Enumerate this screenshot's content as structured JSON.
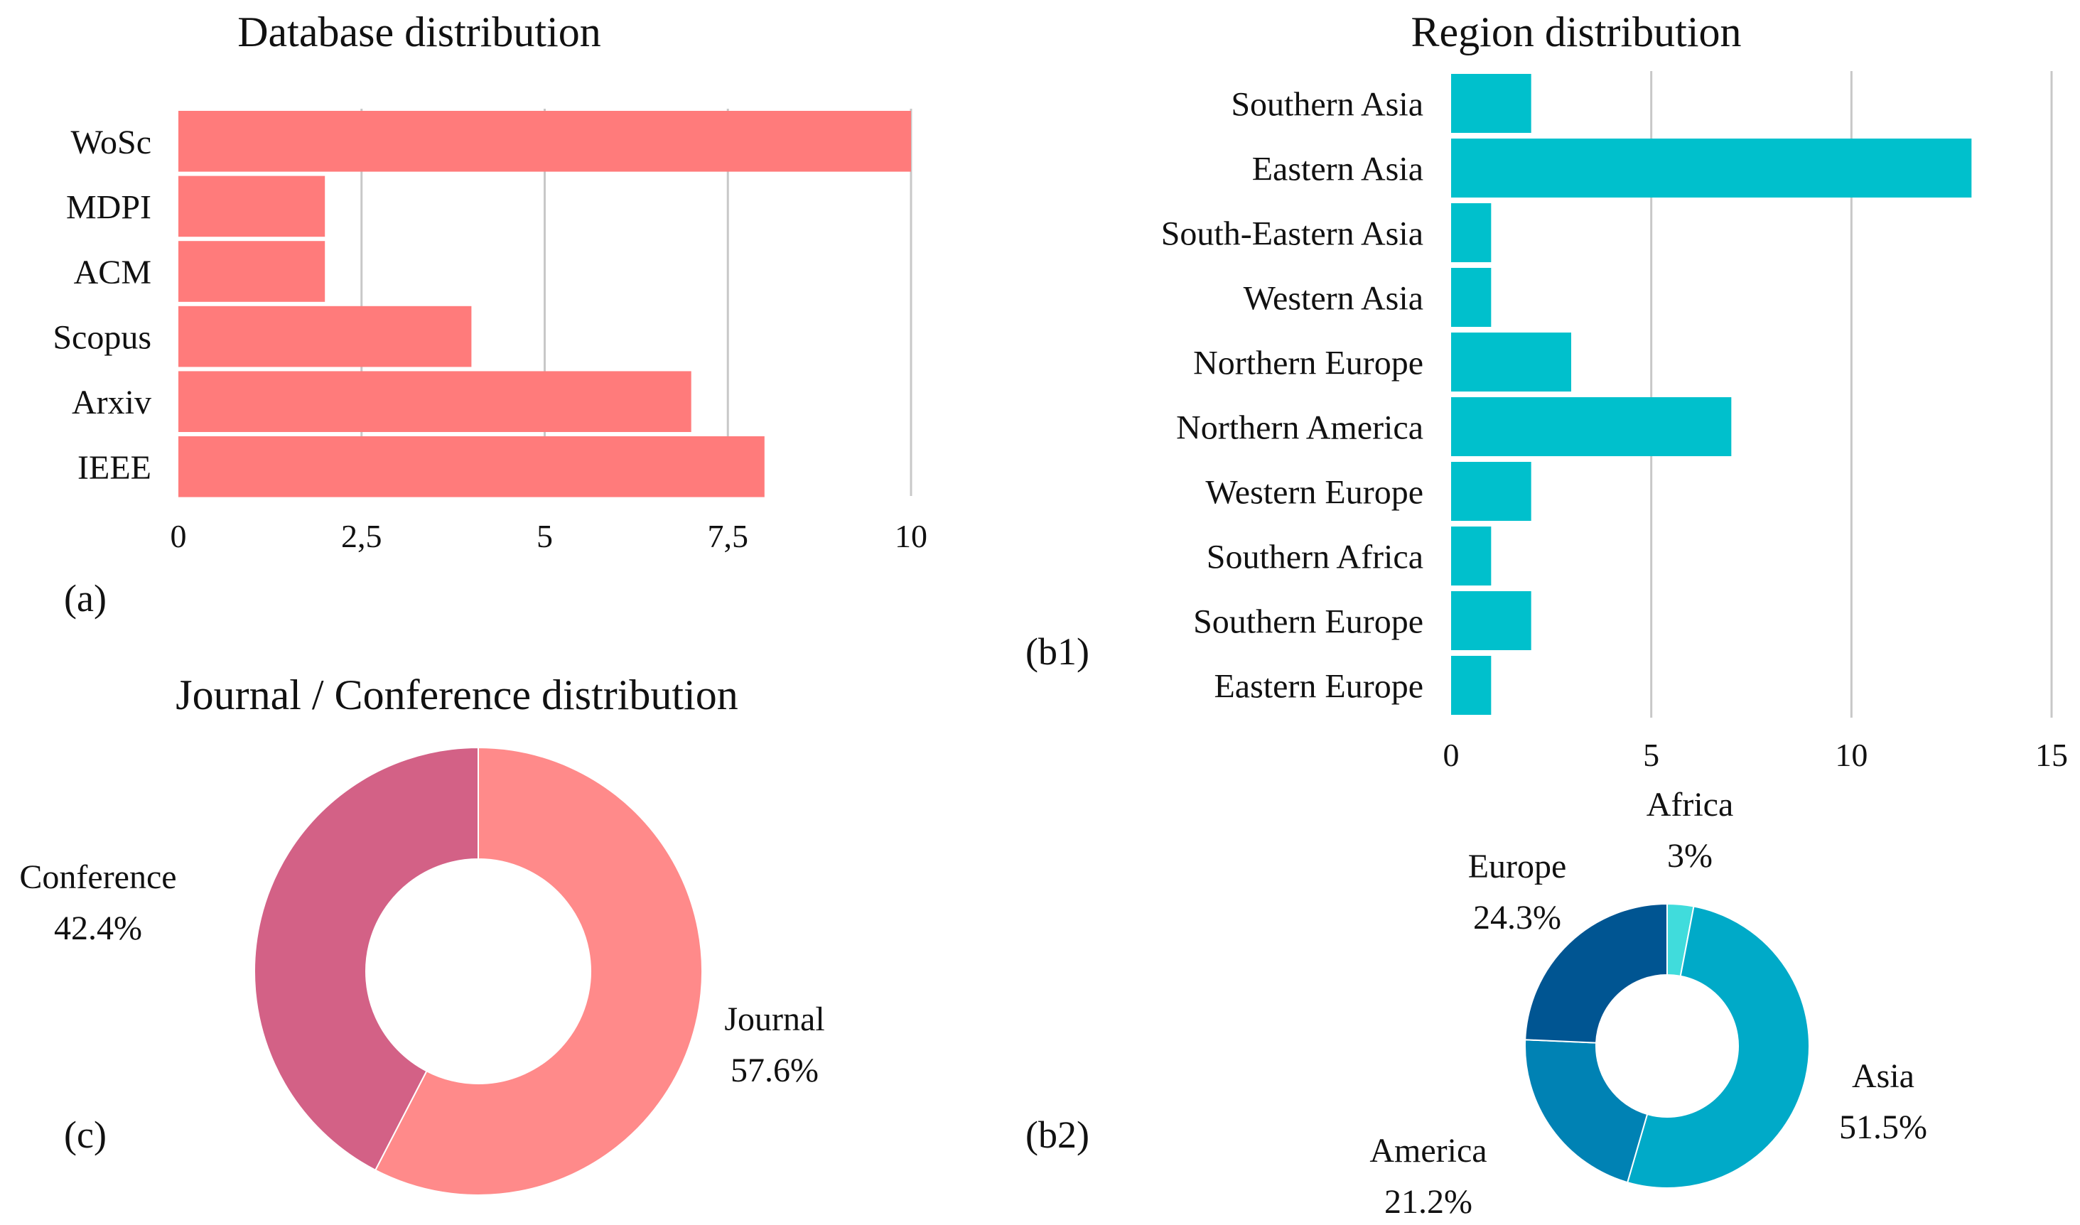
{
  "chart_data": [
    {
      "id": "a",
      "type": "bar",
      "orientation": "horizontal",
      "panel_label": "(a)",
      "title": "Database distribution",
      "categories": [
        "WoSc",
        "MDPI",
        "ACM",
        "Scopus",
        "Arxiv",
        "IEEE"
      ],
      "values": [
        10,
        2,
        2,
        4,
        7,
        8
      ],
      "xlim": [
        0,
        10
      ],
      "ticks": [
        0,
        2.5,
        5,
        7.5,
        10
      ],
      "tick_labels": [
        "0",
        "2,5",
        "5",
        "7,5",
        "10"
      ],
      "color": "#ff7b7b",
      "grid": true
    },
    {
      "id": "b1",
      "type": "bar",
      "orientation": "horizontal",
      "panel_label": "(b1)",
      "title": "Region distribution",
      "categories": [
        "Southern Asia",
        "Eastern Asia",
        "South-Eastern Asia",
        "Western Asia",
        "Northern Europe",
        "Northern America",
        "Western Europe",
        "Southern Africa",
        "Southern Europe",
        "Eastern Europe"
      ],
      "values": [
        2,
        13,
        1,
        1,
        3,
        7,
        2,
        1,
        2,
        1
      ],
      "xlim": [
        0,
        15
      ],
      "ticks": [
        0,
        5,
        10,
        15
      ],
      "tick_labels": [
        "0",
        "5",
        "10",
        "15"
      ],
      "color": "#00c0cc",
      "grid": true
    },
    {
      "id": "c",
      "type": "pie",
      "donut": true,
      "panel_label": "(c)",
      "title": "Journal / Conference distribution",
      "slices": [
        {
          "label": "Journal",
          "pct_label": "57.6%",
          "value": 57.6,
          "color": "#ff8a8a"
        },
        {
          "label": "Conference",
          "pct_label": "42.4%",
          "value": 42.4,
          "color": "#d36186"
        }
      ]
    },
    {
      "id": "b2",
      "type": "pie",
      "donut": true,
      "panel_label": "(b2)",
      "title": "",
      "slices": [
        {
          "label": "Africa",
          "pct_label": "3%",
          "value": 3,
          "color": "#40dcdc"
        },
        {
          "label": "Asia",
          "pct_label": "51.5%",
          "value": 51.5,
          "color": "#00aac8"
        },
        {
          "label": "America",
          "pct_label": "21.2%",
          "value": 21.2,
          "color": "#0082b4"
        },
        {
          "label": "Europe",
          "pct_label": "24.3%",
          "value": 24.3,
          "color": "#005592"
        }
      ]
    }
  ]
}
